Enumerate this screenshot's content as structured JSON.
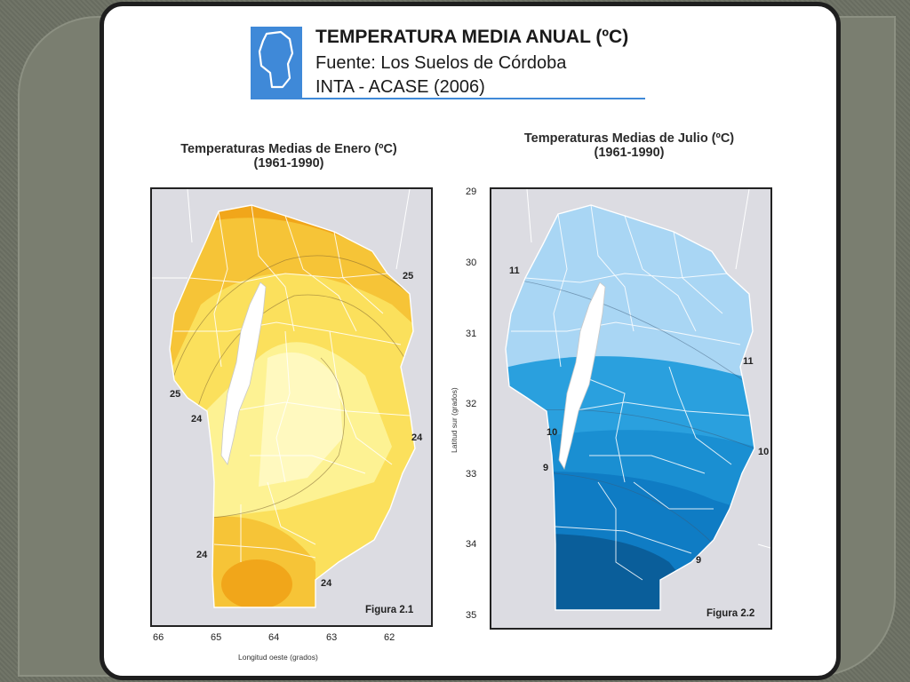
{
  "header": {
    "title": "TEMPERATURA MEDIA ANUAL (ºC)",
    "source_line": "Fuente: Los Suelos de Córdoba",
    "org_line": "INTA - ACASE (2006)"
  },
  "colors": {
    "accent_blue": "#3f89d8",
    "frame_dark": "#1e1e1e",
    "slide_bg": "#6c7063",
    "january_palette": [
      "#f1a61a",
      "#f6c437",
      "#fbe05c",
      "#fdf293",
      "#fff9bf"
    ],
    "july_palette": [
      "#a9d6f4",
      "#8cc8f0",
      "#2aa0de",
      "#0f7cc4",
      "#0a5e9a"
    ]
  },
  "maps": [
    {
      "title_line1": "Temperaturas Medias de Enero (ºC)",
      "title_line2": "(1961-1990)",
      "figure_label": "Figura 2.1",
      "x_axis_title": "Longitud oeste (grados)",
      "x_ticks": [
        "66",
        "65",
        "64",
        "63",
        "62"
      ],
      "contour_labels": [
        "25",
        "25",
        "24",
        "24",
        "24",
        "24"
      ]
    },
    {
      "title_line1": "Temperaturas Medias de Julio (ºC)",
      "title_line2": "(1961-1990)",
      "figure_label": "Figura 2.2",
      "y_axis_title": "Latitud sur (grados)",
      "y_ticks": [
        "29",
        "30",
        "31",
        "32",
        "33",
        "34",
        "35"
      ],
      "contour_labels": [
        "11",
        "11",
        "10",
        "10",
        "9",
        "9"
      ]
    }
  ]
}
